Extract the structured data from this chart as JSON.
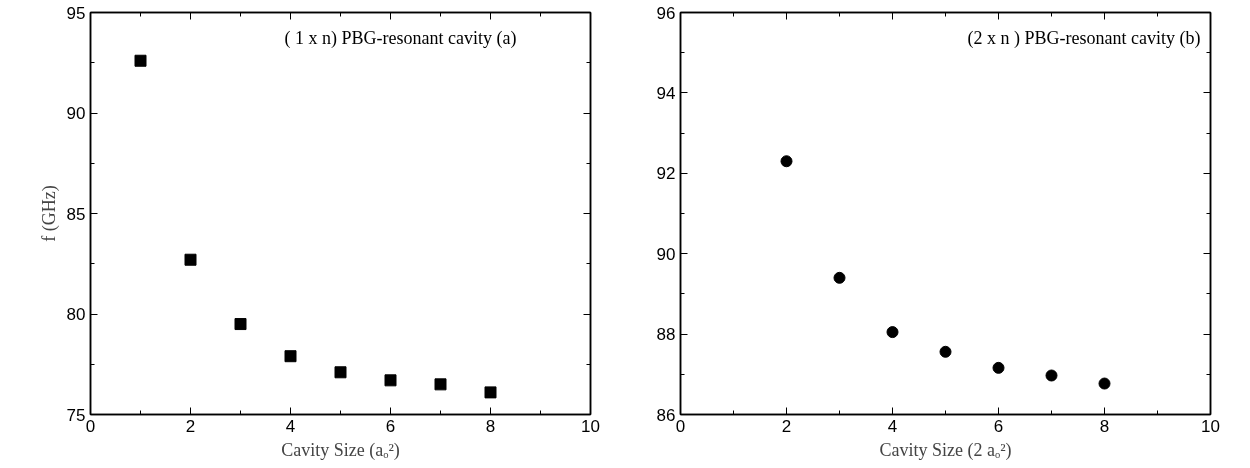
{
  "chart_data": [
    {
      "type": "scatter",
      "xlabel": "Cavity Size (aₒ²)",
      "ylabel": "f (GHz)",
      "annotations": [
        "( 1 x n)  PBG-resonant cavity  (a)"
      ],
      "x": [
        1,
        2,
        3,
        4,
        5,
        6,
        7,
        8
      ],
      "series": [
        {
          "color": "#000000",
          "values": [
            92.6,
            82.7,
            79.5,
            77.9,
            77.1,
            76.7,
            76.5,
            76.1
          ]
        }
      ],
      "marker": "square",
      "xlim": [
        0,
        10
      ],
      "xticks": [
        0,
        2,
        4,
        6,
        8,
        10
      ],
      "ylim": [
        75,
        95
      ],
      "yticks": [
        75,
        80,
        85,
        90,
        95
      ],
      "grid": false
    },
    {
      "type": "scatter",
      "xlabel": "Cavity Size (2 aₒ²)",
      "annotations": [
        "(2 x n ) PBG-resonant cavity (b)"
      ],
      "x": [
        2,
        3,
        4,
        5,
        6,
        7,
        8
      ],
      "series": [
        {
          "color": "#000000",
          "values": [
            92.3,
            89.4,
            88.05,
            87.56,
            87.16,
            86.97,
            86.77
          ]
        }
      ],
      "marker": "circle",
      "xlim": [
        0,
        10
      ],
      "xticks": [
        0,
        2,
        4,
        6,
        8,
        10
      ],
      "ylim": [
        86,
        96
      ],
      "yticks": [
        86,
        88,
        90,
        92,
        94,
        96
      ],
      "grid": false
    }
  ]
}
